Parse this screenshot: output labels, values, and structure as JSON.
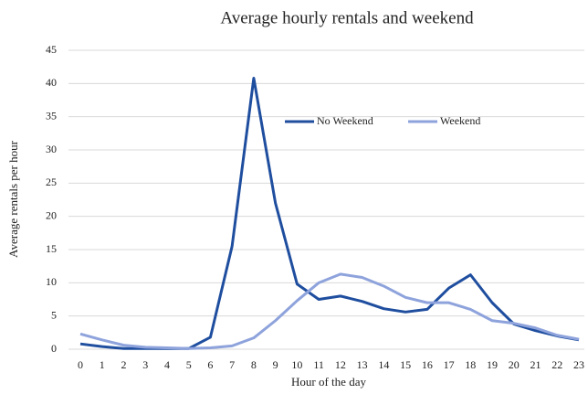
{
  "chart_data": {
    "type": "line",
    "title": "Average hourly rentals and weekend",
    "x_label": "Hour of the day",
    "y_label": "Average rentals per hour",
    "x": [
      0,
      1,
      2,
      3,
      4,
      5,
      6,
      7,
      8,
      9,
      10,
      11,
      12,
      13,
      14,
      15,
      16,
      17,
      18,
      19,
      20,
      21,
      22,
      23
    ],
    "series": [
      {
        "name": "No Weekend",
        "color": "#1f4e9f",
        "values": [
          0.8,
          0.4,
          0.1,
          0.1,
          0.1,
          0.1,
          1.8,
          15.5,
          40.8,
          22,
          9.8,
          7.5,
          8,
          7.2,
          6.1,
          5.6,
          6,
          9.2,
          11.2,
          7,
          3.8,
          2.8,
          2,
          1.4
        ]
      },
      {
        "name": "Weekend",
        "color": "#8ea3dc",
        "values": [
          2.3,
          1.4,
          0.6,
          0.3,
          0.2,
          0.1,
          0.2,
          0.5,
          1.7,
          4.3,
          7.3,
          10,
          11.3,
          10.8,
          9.5,
          7.8,
          7,
          7,
          6,
          4.3,
          3.9,
          3.2,
          2.1,
          1.5
        ]
      }
    ],
    "xlim": [
      0,
      23
    ],
    "xticks": [
      0,
      1,
      2,
      3,
      4,
      5,
      6,
      7,
      8,
      9,
      10,
      11,
      12,
      13,
      14,
      15,
      16,
      17,
      18,
      19,
      20,
      21,
      22,
      23
    ],
    "ylim": [
      0,
      45
    ],
    "yticks": [
      0,
      5,
      10,
      15,
      20,
      25,
      30,
      35,
      40,
      45
    ],
    "grid": true,
    "legend": "center"
  }
}
